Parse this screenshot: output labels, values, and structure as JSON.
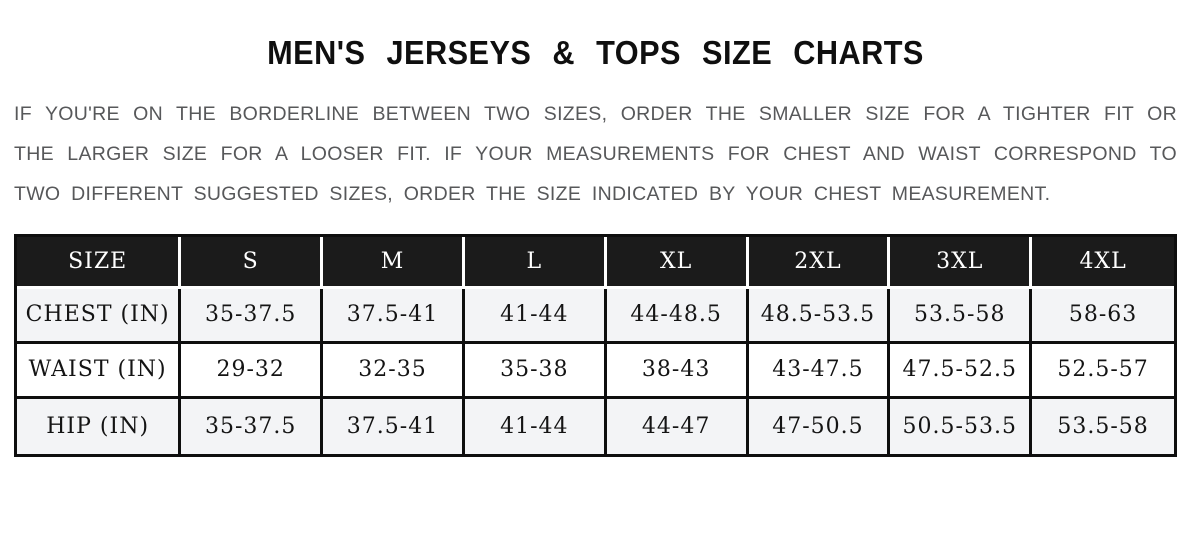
{
  "title": "MEN'S JERSEYS & TOPS SIZE CHARTS",
  "intro_text": "IF YOU'RE ON THE BORDERLINE BETWEEN TWO SIZES, ORDER THE SMALLER SIZE FOR A TIGHTER FIT OR THE LARGER SIZE FOR A LOOSER FIT. IF YOUR MEASUREMENTS FOR CHEST AND WAIST CORRESPOND TO TWO DIFFERENT SUGGESTED SIZES, ORDER THE SIZE INDICATED BY YOUR CHEST MEASUREMENT.",
  "size_table": {
    "columns": [
      "SIZE",
      "S",
      "M",
      "L",
      "XL",
      "2XL",
      "3XL",
      "4XL"
    ],
    "rows": [
      {
        "label": "CHEST (IN)",
        "values": [
          "35-37.5",
          "37.5-41",
          "41-44",
          "44-48.5",
          "48.5-53.5",
          "53.5-58",
          "58-63"
        ]
      },
      {
        "label": "WAIST (IN)",
        "values": [
          "29-32",
          "32-35",
          "35-38",
          "38-43",
          "43-47.5",
          "47.5-52.5",
          "52.5-57"
        ]
      },
      {
        "label": "HIP (IN)",
        "values": [
          "35-37.5",
          "37.5-41",
          "41-44",
          "44-47",
          "47-50.5",
          "50.5-53.5",
          "53.5-58"
        ]
      }
    ]
  },
  "colors": {
    "header_bg": "#1b1b1b",
    "header_text": "#ffffff",
    "row_stripe": "#f3f4f6",
    "body_text": "#141414",
    "paragraph_text": "#57585a",
    "title_text": "#0f0f0f",
    "grid_border": "#0e0e0e"
  }
}
